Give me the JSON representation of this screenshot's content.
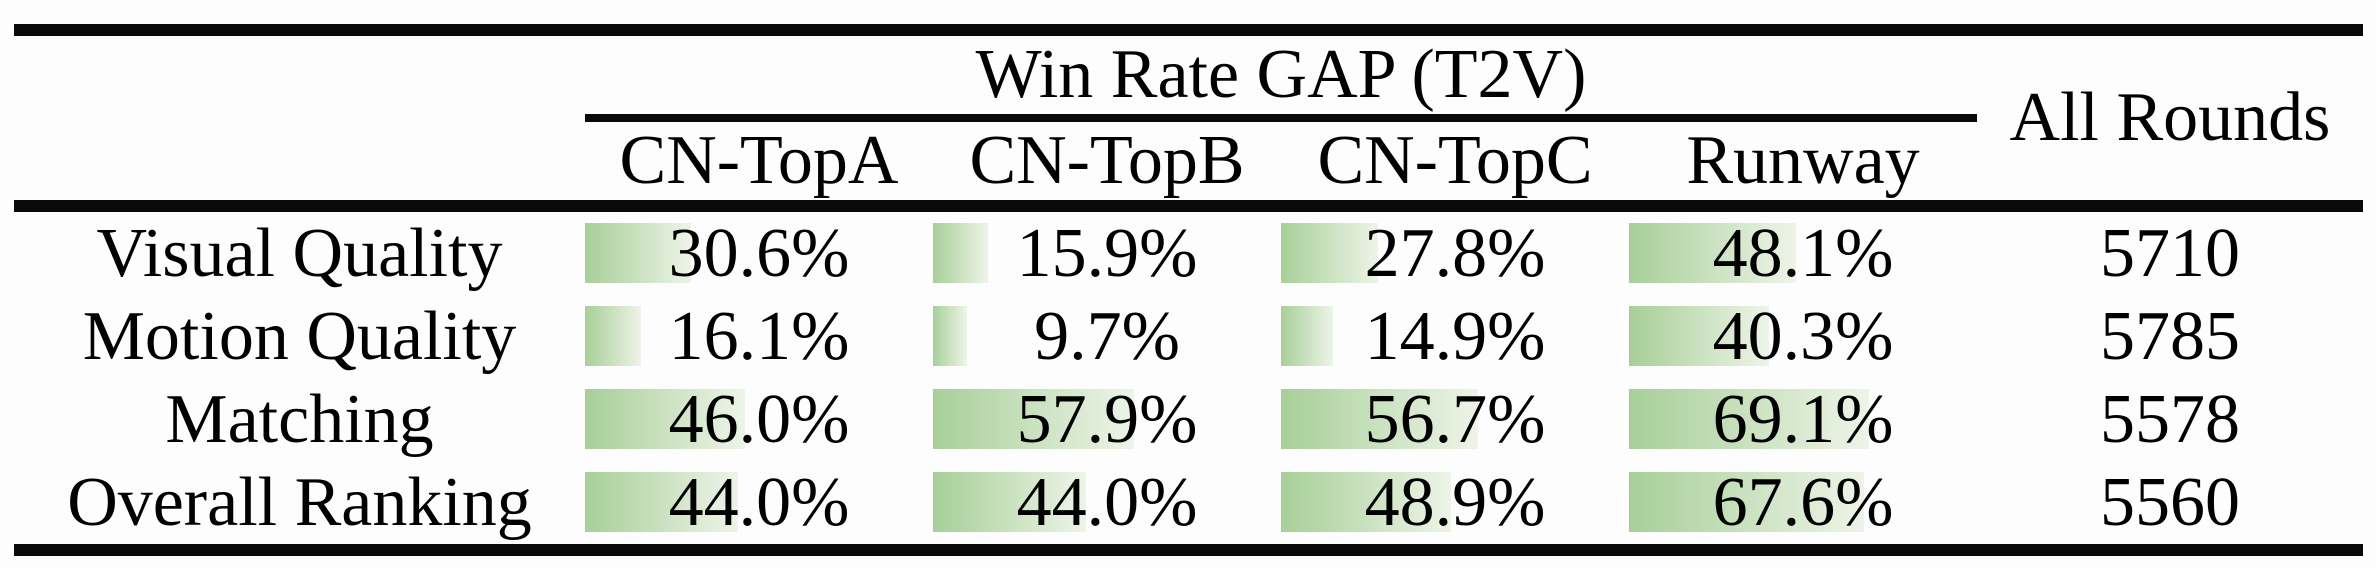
{
  "chart_data": {
    "type": "table",
    "title": "Win Rate GAP (T2V)",
    "columns": [
      "CN-TopA",
      "CN-TopB",
      "CN-TopC",
      "Runway"
    ],
    "extra_column": "All Rounds",
    "rows": [
      {
        "label": "Visual Quality",
        "win_rates": [
          "30.6%",
          "15.9%",
          "27.8%",
          "48.1%"
        ],
        "all_rounds": "5710"
      },
      {
        "label": "Motion Quality",
        "win_rates": [
          "16.1%",
          "9.7%",
          "14.9%",
          "40.3%"
        ],
        "all_rounds": "5785"
      },
      {
        "label": "Matching",
        "win_rates": [
          "46.0%",
          "57.9%",
          "56.7%",
          "69.1%"
        ],
        "all_rounds": "5578"
      },
      {
        "label": "Overall Ranking",
        "win_rates": [
          "44.0%",
          "44.0%",
          "48.9%",
          "67.6%"
        ],
        "all_rounds": "5560"
      }
    ],
    "bar_color_start": "#a7cf98",
    "bar_color_end": "#eef4e8",
    "rule_color": "#0a0a0a",
    "text_color": "#010101",
    "layout": {
      "grid": false,
      "bars_proportional_to_percent": true
    }
  }
}
